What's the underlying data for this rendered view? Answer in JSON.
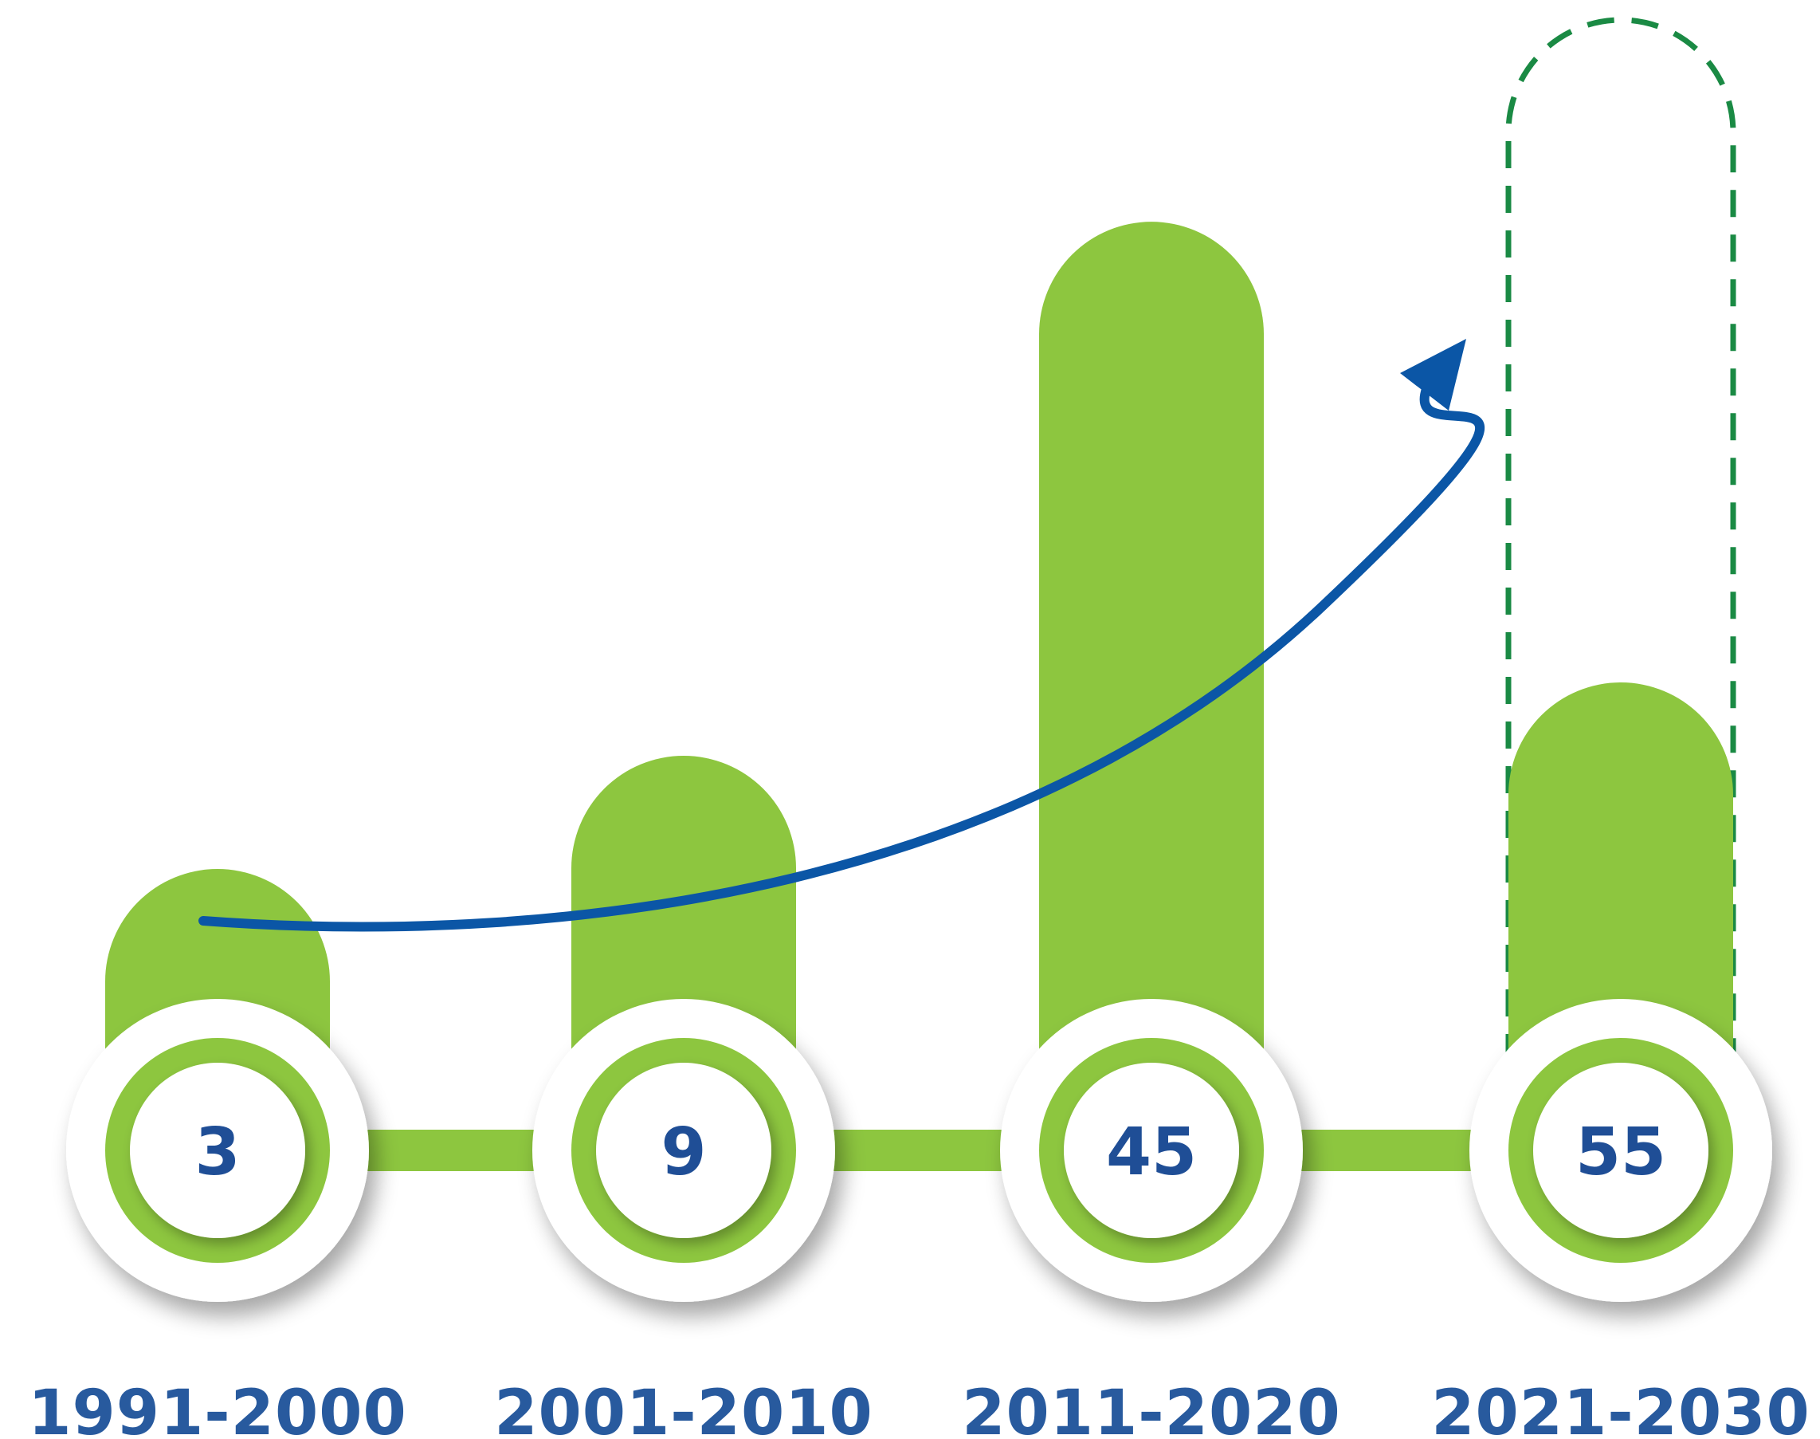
{
  "chart_data": {
    "type": "bar",
    "title": "",
    "xlabel": "",
    "ylabel": "",
    "categories": [
      "1991-2000",
      "2001-2010",
      "2011-2020",
      "2021-2030"
    ],
    "values": [
      3,
      9,
      45,
      55
    ],
    "projected": [
      false,
      false,
      false,
      true
    ],
    "trend_arrow": true,
    "grid": false,
    "legend": "none"
  },
  "colors": {
    "bar": "#8dc63f",
    "bar_shadow": "#6d9e2c",
    "connector": "#8dc63f",
    "projection_outline": "#1a8a44",
    "arrow": "#0b56a6",
    "value_text": "#1f4e96",
    "category_text": "#285a9e"
  },
  "icons": {
    "trend": "trend-arrow-icon"
  }
}
